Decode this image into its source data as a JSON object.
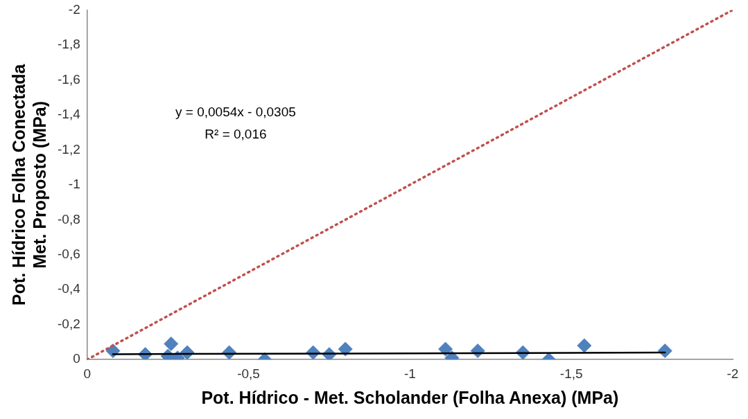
{
  "chart_data": {
    "type": "scatter",
    "xlabel": "Pot. Hídrico - Met. Scholander (Folha Anexa) (MPa)",
    "ylabel": "Pot. Hídrico Folha Conectada\nMet. Proposto (MPa)",
    "annotations": [
      "y = 0,0054x - 0,0305",
      "R² = 0,016"
    ],
    "xlim": [
      0,
      -2
    ],
    "ylim": [
      0,
      -2
    ],
    "xticks": [
      0,
      {
        "value": -0.5,
        "label": "-0,5"
      },
      -1,
      {
        "value": -1.5,
        "label": "-1,5"
      },
      -2
    ],
    "yticks": [
      0,
      {
        "value": -0.2,
        "label": "-0,2"
      },
      {
        "value": -0.4,
        "label": "-0,4"
      },
      {
        "value": -0.6,
        "label": "-0,6"
      },
      {
        "value": -0.8,
        "label": "-0,8"
      },
      -1,
      {
        "value": -1.2,
        "label": "-1,2"
      },
      {
        "value": -1.4,
        "label": "-1,4"
      },
      {
        "value": -1.6,
        "label": "-1,6"
      },
      {
        "value": -1.8,
        "label": "-1,8"
      },
      -2
    ],
    "grid": false,
    "legend": false,
    "marker": "diamond",
    "series": [
      {
        "color": "#4f81bd",
        "x": [
          -0.08,
          -0.18,
          -0.26,
          -0.25,
          -0.28,
          -0.31,
          -0.44,
          -0.55,
          -0.7,
          -0.75,
          -0.8,
          -1.11,
          -1.13,
          -1.21,
          -1.35,
          -1.43,
          -1.54,
          -1.79
        ],
        "values": [
          -0.05,
          -0.03,
          -0.09,
          -0.02,
          -0.01,
          -0.04,
          -0.04,
          0,
          -0.04,
          -0.03,
          -0.06,
          -0.06,
          -0.01,
          -0.05,
          -0.04,
          0,
          -0.08,
          -0.05
        ]
      },
      {
        "type": "line",
        "color": "#000000",
        "marker": "none",
        "line_style": "solid",
        "x": [
          -0.08,
          -1.79
        ],
        "values": [
          -0.031,
          -0.04
        ]
      },
      {
        "type": "line",
        "color": "#c0504d",
        "marker": "none",
        "line_style": "dotted",
        "x": [
          0,
          -2
        ],
        "values": [
          0,
          -2
        ]
      }
    ]
  }
}
